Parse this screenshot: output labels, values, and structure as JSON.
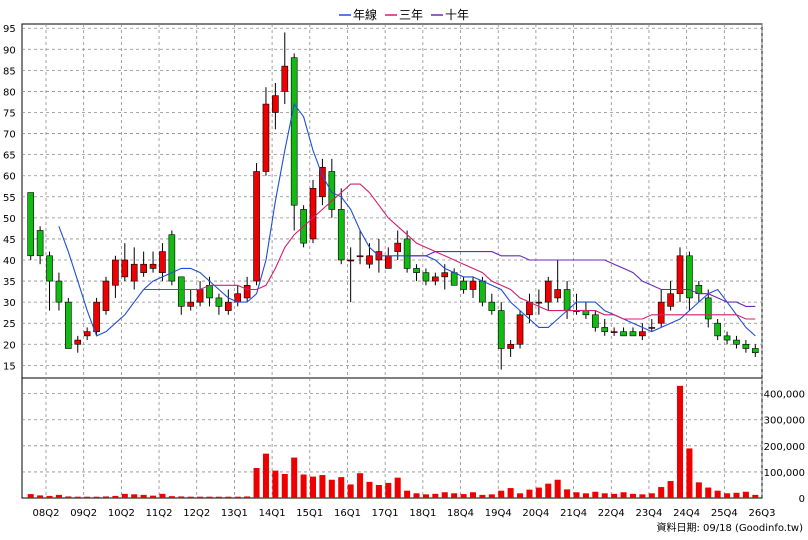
{
  "chart_data": {
    "type": "candlestick",
    "legend": [
      {
        "name": "年線",
        "color": "#1f4fd6"
      },
      {
        "name": "三年",
        "color": "#d0206e"
      },
      {
        "name": "十年",
        "color": "#6a2ab8"
      }
    ],
    "colors": {
      "up": "#ee0000",
      "down": "#11bb11",
      "volume": "#ee0000",
      "grid": "#8c8c8c"
    },
    "grid": true,
    "price_axis": {
      "min": 12,
      "max": 96,
      "ticks": [
        "15",
        "20",
        "25",
        "30",
        "35",
        "40",
        "45",
        "50",
        "55",
        "60",
        "65",
        "70",
        "75",
        "80",
        "85",
        "90",
        "95"
      ]
    },
    "volume_axis": {
      "min": 0,
      "max": 460000,
      "ticks": [
        "0",
        "100,000",
        "200,000",
        "300,000",
        "400,000"
      ]
    },
    "x_ticks": [
      "08Q2",
      "09Q2",
      "10Q2",
      "11Q2",
      "12Q2",
      "13Q1",
      "14Q1",
      "15Q1",
      "16Q1",
      "17Q1",
      "18Q1",
      "18Q4",
      "19Q4",
      "20Q4",
      "21Q4",
      "22Q4",
      "23Q4",
      "24Q4",
      "25Q4",
      "26Q3"
    ],
    "candles": [
      [
        56,
        41,
        56,
        40
      ],
      [
        47,
        41,
        48,
        39
      ],
      [
        41,
        35,
        42,
        28
      ],
      [
        35,
        30,
        37,
        28
      ],
      [
        30,
        19,
        31,
        19
      ],
      [
        20,
        21,
        22,
        18
      ],
      [
        22,
        23,
        24,
        21
      ],
      [
        23,
        30,
        31,
        22
      ],
      [
        28,
        35,
        36,
        27
      ],
      [
        34,
        40,
        41,
        31
      ],
      [
        36,
        40,
        44,
        35
      ],
      [
        35,
        39,
        43,
        33
      ],
      [
        37,
        39,
        42,
        36
      ],
      [
        38,
        39,
        42,
        37
      ],
      [
        37,
        42,
        44,
        35
      ],
      [
        46,
        35,
        47,
        34
      ],
      [
        36,
        29,
        36,
        27
      ],
      [
        29,
        30,
        33,
        28
      ],
      [
        30,
        33,
        35,
        29
      ],
      [
        34,
        31,
        36,
        29
      ],
      [
        31,
        29,
        32,
        27
      ],
      [
        28,
        30,
        33,
        27
      ],
      [
        30,
        32,
        34,
        29
      ],
      [
        31,
        34,
        36,
        30
      ],
      [
        35,
        61,
        63,
        34
      ],
      [
        61,
        77,
        81,
        60
      ],
      [
        75,
        79,
        82,
        71
      ],
      [
        80,
        86,
        94,
        77
      ],
      [
        88,
        53,
        89,
        47
      ],
      [
        52,
        44,
        53,
        43
      ],
      [
        45,
        57,
        59,
        44
      ],
      [
        55,
        62,
        64,
        53
      ],
      [
        61,
        52,
        64,
        50
      ],
      [
        52,
        40,
        57,
        39
      ],
      [
        40,
        40,
        43,
        30
      ],
      [
        41,
        41,
        47,
        39
      ],
      [
        39,
        41,
        44,
        38
      ],
      [
        40,
        42,
        45,
        37
      ],
      [
        38,
        41,
        43,
        38
      ],
      [
        42,
        44,
        47,
        40
      ],
      [
        45,
        38,
        47,
        37
      ],
      [
        38,
        37,
        39,
        35
      ],
      [
        37,
        35,
        38,
        34
      ],
      [
        35,
        36,
        37,
        34
      ],
      [
        36,
        37,
        39,
        33
      ],
      [
        37,
        34,
        38,
        34
      ],
      [
        35,
        33,
        36,
        32
      ],
      [
        33,
        35,
        36,
        31
      ],
      [
        35,
        30,
        36,
        29
      ],
      [
        30,
        28,
        32,
        27
      ],
      [
        28,
        19,
        30,
        14
      ],
      [
        19,
        20,
        21,
        17
      ],
      [
        20,
        27,
        28,
        19
      ],
      [
        27,
        30,
        32,
        25
      ],
      [
        30,
        30,
        33,
        27
      ],
      [
        30,
        35,
        36,
        28
      ],
      [
        31,
        33,
        40,
        30
      ],
      [
        33,
        28,
        35,
        26
      ],
      [
        28,
        28,
        32,
        27
      ],
      [
        28,
        27,
        30,
        26
      ],
      [
        27,
        24,
        28,
        23
      ],
      [
        24,
        23,
        26,
        22
      ],
      [
        23,
        23,
        24,
        22
      ],
      [
        23,
        22,
        24,
        22
      ],
      [
        23,
        22,
        24,
        22
      ],
      [
        22,
        23,
        25,
        21
      ],
      [
        24,
        24,
        26,
        23
      ],
      [
        25,
        30,
        33,
        24
      ],
      [
        29,
        32,
        35,
        28
      ],
      [
        32,
        41,
        43,
        30
      ],
      [
        41,
        31,
        42,
        28
      ],
      [
        34,
        32,
        35,
        30
      ],
      [
        31,
        26,
        33,
        24
      ],
      [
        25,
        22,
        26,
        21
      ],
      [
        22,
        21,
        23,
        20
      ],
      [
        21,
        20,
        22,
        19
      ],
      [
        20,
        19,
        21,
        18
      ],
      [
        19,
        18,
        20,
        17
      ]
    ],
    "volume": [
      15000,
      10000,
      8000,
      12000,
      6000,
      5000,
      5000,
      5000,
      6000,
      8000,
      16000,
      14000,
      12000,
      9000,
      16000,
      7000,
      6000,
      5000,
      5000,
      5000,
      5000,
      5000,
      5000,
      6000,
      115000,
      170000,
      105000,
      92000,
      155000,
      90000,
      82000,
      88000,
      70000,
      80000,
      52000,
      95000,
      62000,
      50000,
      58000,
      78000,
      28000,
      18000,
      14000,
      16000,
      22000,
      18000,
      15000,
      22000,
      12000,
      14000,
      28000,
      38000,
      18000,
      32000,
      40000,
      55000,
      70000,
      33000,
      22000,
      18000,
      24000,
      18000,
      16000,
      22000,
      16000,
      14000,
      18000,
      42000,
      65000,
      430000,
      190000,
      60000,
      40000,
      28000,
      18000,
      20000,
      24000,
      12000
    ],
    "series": [
      {
        "name": "年線",
        "color": "#1f4fd6",
        "values": [
          null,
          null,
          null,
          48,
          42,
          35,
          28,
          22,
          23,
          25,
          27,
          30,
          33,
          35,
          36,
          37,
          38,
          38,
          37,
          35,
          33,
          31,
          30,
          30,
          32,
          40,
          54,
          66,
          77,
          74,
          66,
          60,
          56,
          55,
          52,
          47,
          43,
          41,
          41,
          41,
          41,
          41,
          41,
          40,
          38,
          37,
          36,
          36,
          35,
          34,
          33,
          30,
          28,
          26,
          24,
          24,
          26,
          28,
          30,
          30,
          30,
          28,
          27,
          26,
          25,
          24,
          23,
          24,
          25,
          26,
          28,
          30,
          32,
          33,
          30,
          27,
          24,
          22
        ]
      },
      {
        "name": "三年",
        "color": "#d0206e",
        "values": [
          null,
          null,
          null,
          null,
          null,
          null,
          null,
          null,
          null,
          null,
          null,
          null,
          33,
          33,
          33,
          33,
          33,
          33,
          33,
          34,
          34,
          34,
          34,
          33,
          33,
          34,
          38,
          43,
          46,
          48,
          50,
          52,
          54,
          56,
          58,
          58,
          56,
          53,
          50,
          48,
          46,
          44,
          43,
          42,
          41,
          40,
          39,
          38,
          37,
          35,
          34,
          33,
          31,
          30,
          29,
          28,
          28,
          28,
          28,
          28,
          28,
          27,
          27,
          26,
          26,
          26,
          27,
          27,
          27,
          27,
          27,
          27,
          27,
          27,
          27,
          27,
          26,
          26
        ]
      },
      {
        "name": "十年",
        "color": "#6a2ab8",
        "values": [
          null,
          null,
          null,
          null,
          null,
          null,
          null,
          null,
          null,
          null,
          null,
          null,
          null,
          null,
          null,
          null,
          null,
          null,
          null,
          null,
          null,
          null,
          null,
          null,
          null,
          null,
          null,
          null,
          null,
          null,
          null,
          null,
          null,
          null,
          null,
          null,
          null,
          null,
          null,
          null,
          41,
          41,
          41,
          42,
          42,
          42,
          42,
          42,
          42,
          42,
          41,
          41,
          41,
          40,
          40,
          40,
          40,
          40,
          40,
          40,
          40,
          40,
          39,
          38,
          37,
          35,
          34,
          33,
          33,
          33,
          33,
          32,
          32,
          31,
          30,
          30,
          29,
          29
        ]
      }
    ],
    "footer": "資料日期: 09/18  (Goodinfo.tw)"
  }
}
